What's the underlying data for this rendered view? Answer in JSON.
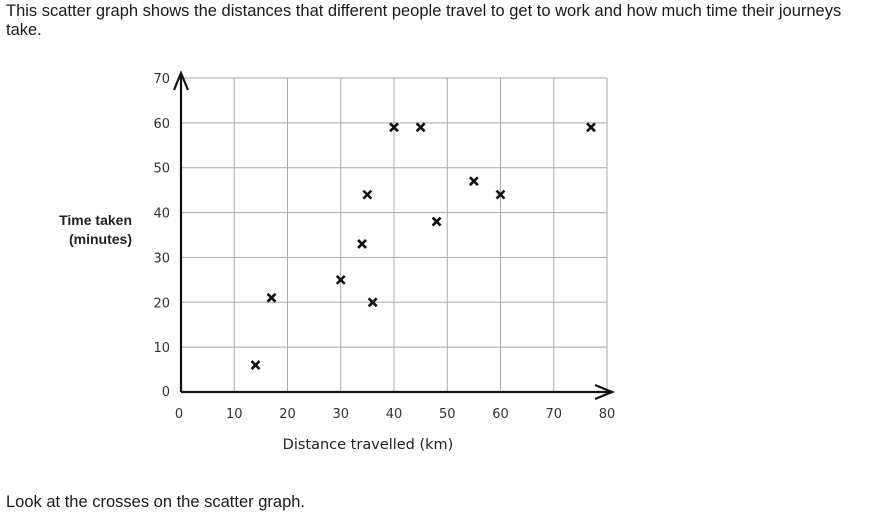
{
  "intro_text": "This scatter graph shows the distances that different people travel to get to work and how much time their journeys take.",
  "footer_text": "Look at the crosses on the scatter graph.",
  "chart_data": {
    "type": "scatter",
    "xlabel": "Distance travelled (km)",
    "ylabel_lines": [
      "Time taken",
      "(minutes)"
    ],
    "xlim": [
      0,
      80
    ],
    "ylim": [
      0,
      70
    ],
    "xticks": [
      0,
      10,
      20,
      30,
      40,
      50,
      60,
      70,
      80
    ],
    "yticks": [
      0,
      10,
      20,
      30,
      40,
      50,
      60,
      70
    ],
    "grid": true,
    "marker": "cross",
    "points": [
      {
        "x": 14,
        "y": 6
      },
      {
        "x": 17,
        "y": 21
      },
      {
        "x": 30,
        "y": 25
      },
      {
        "x": 34,
        "y": 33
      },
      {
        "x": 35,
        "y": 44
      },
      {
        "x": 36,
        "y": 20
      },
      {
        "x": 40,
        "y": 59
      },
      {
        "x": 45,
        "y": 59
      },
      {
        "x": 48,
        "y": 38
      },
      {
        "x": 55,
        "y": 47
      },
      {
        "x": 60,
        "y": 44
      },
      {
        "x": 77,
        "y": 59
      }
    ]
  }
}
